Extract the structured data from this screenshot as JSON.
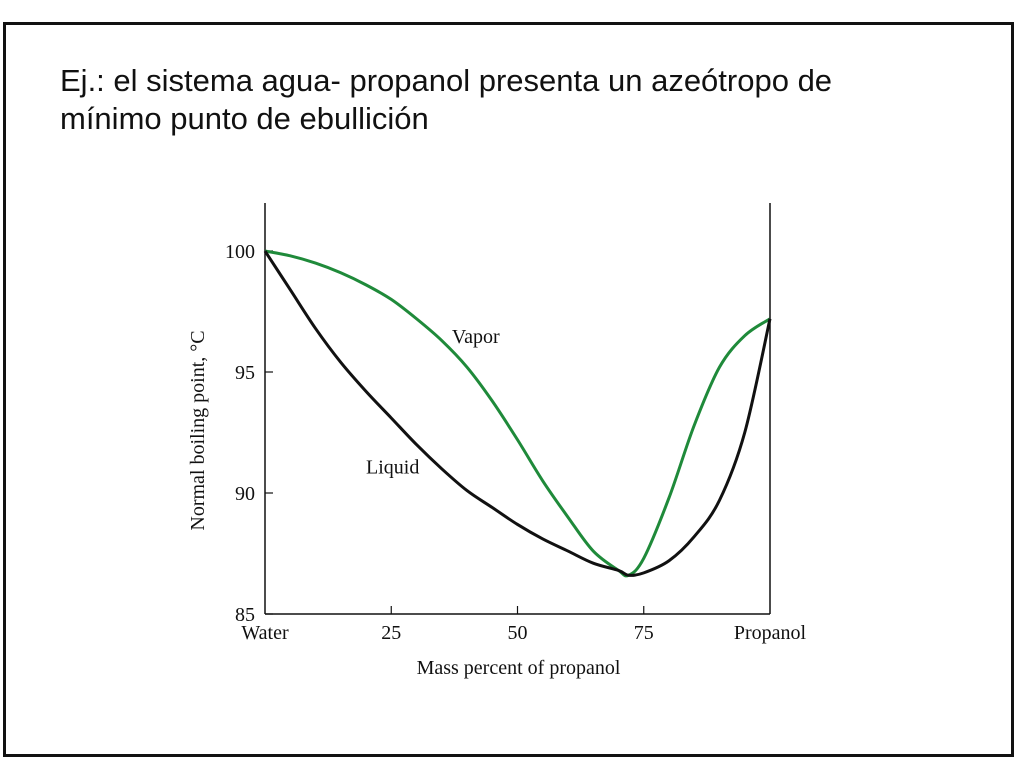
{
  "slide": {
    "title_line1": "Ej.: el sistema agua- propanol presenta un azeótropo de",
    "title_line2": "mínimo punto de ebullición"
  },
  "chart_data": {
    "type": "line",
    "xlabel": "Mass percent of propanol",
    "ylabel": "Normal boiling point, °C",
    "xlim": [
      0,
      100
    ],
    "ylim": [
      85,
      102
    ],
    "x_ticks": [
      {
        "value": 0,
        "label": "Water"
      },
      {
        "value": 25,
        "label": "25"
      },
      {
        "value": 50,
        "label": "50"
      },
      {
        "value": 75,
        "label": "75"
      },
      {
        "value": 100,
        "label": "Propanol"
      }
    ],
    "y_ticks": [
      {
        "value": 85,
        "label": "85"
      },
      {
        "value": 90,
        "label": "90"
      },
      {
        "value": 95,
        "label": "95"
      },
      {
        "value": 100,
        "label": "100"
      }
    ],
    "grid": false,
    "series": [
      {
        "name": "Vapor",
        "color": "#1f8a3a",
        "x": [
          0,
          5,
          10,
          15,
          20,
          25,
          30,
          35,
          40,
          45,
          50,
          55,
          60,
          65,
          70,
          72,
          75,
          80,
          85,
          90,
          95,
          100
        ],
        "y": [
          100.0,
          99.8,
          99.5,
          99.1,
          98.6,
          98.0,
          97.2,
          96.3,
          95.2,
          93.8,
          92.2,
          90.5,
          89.0,
          87.6,
          86.8,
          86.6,
          87.3,
          89.8,
          92.8,
          95.2,
          96.5,
          97.2
        ],
        "label_at": {
          "x": 37,
          "y": 96.2
        }
      },
      {
        "name": "Liquid",
        "color": "#111111",
        "x": [
          0,
          5,
          10,
          15,
          20,
          25,
          30,
          35,
          40,
          45,
          50,
          55,
          60,
          65,
          70,
          72,
          75,
          80,
          85,
          90,
          95,
          100
        ],
        "y": [
          100.0,
          98.4,
          96.8,
          95.4,
          94.2,
          93.1,
          92.0,
          91.0,
          90.1,
          89.4,
          88.7,
          88.1,
          87.6,
          87.1,
          86.8,
          86.6,
          86.7,
          87.2,
          88.2,
          89.7,
          92.5,
          97.2
        ],
        "label_at": {
          "x": 20,
          "y": 90.8
        }
      }
    ]
  }
}
